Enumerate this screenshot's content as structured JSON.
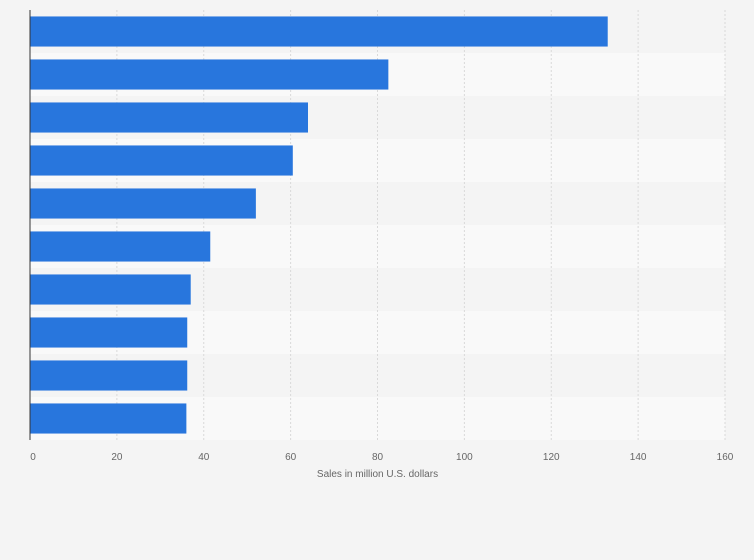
{
  "colors": {
    "bar": "#2876dd",
    "background": "#f4f4f4",
    "band_light": "#f9f9f9",
    "band_dark": "#f4f4f4",
    "gridline": "#d9d9d9",
    "axis": "#333333",
    "text": "#666666"
  },
  "chart_data": {
    "type": "bar",
    "orientation": "horizontal",
    "categories": [
      "",
      "",
      "",
      "",
      "",
      "",
      "",
      "",
      "",
      ""
    ],
    "values": [
      133,
      82.5,
      64,
      60.5,
      52,
      41.5,
      37,
      36.2,
      36.2,
      36
    ],
    "xlabel": "Sales in million U.S. dollars",
    "ylabel": "",
    "xlim": [
      0,
      160
    ],
    "xticks": [
      0,
      20,
      40,
      60,
      80,
      100,
      120,
      140,
      160
    ],
    "tick_labels": [
      "0",
      "20",
      "40",
      "60",
      "80",
      "100",
      "120",
      "140",
      "160"
    ],
    "grid": true,
    "legend": "none"
  }
}
